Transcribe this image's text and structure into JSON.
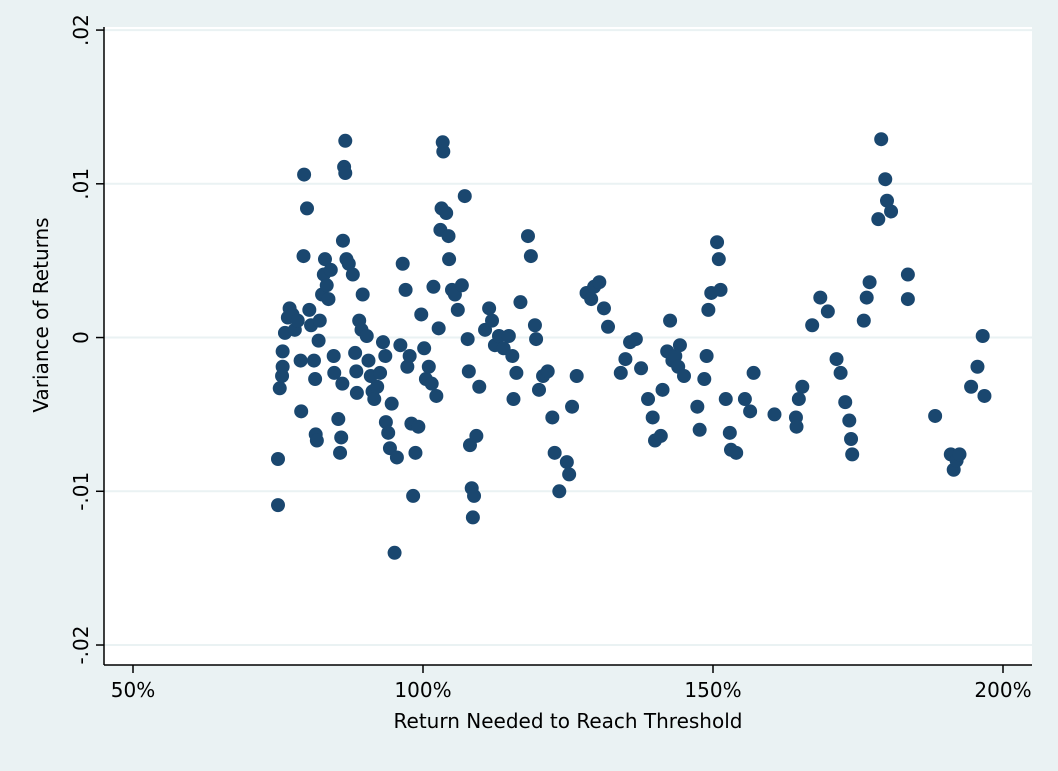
{
  "chart_data": {
    "type": "scatter",
    "x_label": "Return Needed to Reach Threshold",
    "y_label": "Variance of Returns",
    "color": "#1a476f",
    "grid": true,
    "xlim": [
      45,
      205
    ],
    "ylim": [
      -0.0213,
      0.0202
    ],
    "xticks": [
      {
        "value": 50,
        "label": "50%"
      },
      {
        "value": 100,
        "label": "100%"
      },
      {
        "value": 150,
        "label": "150%"
      },
      {
        "value": 200,
        "label": "200%"
      }
    ],
    "yticks": [
      {
        "value": -0.02,
        "label": "-.02"
      },
      {
        "value": -0.01,
        "label": "-.01"
      },
      0,
      {
        "value": 0.01,
        "label": ".01"
      },
      {
        "value": 0.02,
        "label": ".02"
      }
    ],
    "x": [
      75.0,
      75.0,
      75.3,
      75.7,
      75.8,
      75.8,
      76.2,
      76.7,
      77.0,
      77.5,
      77.9,
      78.4,
      78.9,
      79.0,
      79.4,
      79.5,
      80.0,
      80.4,
      80.7,
      81.2,
      81.4,
      81.5,
      81.7,
      82.0,
      82.2,
      82.6,
      82.9,
      83.1,
      83.4,
      83.7,
      84.1,
      84.6,
      84.7,
      85.4,
      85.7,
      85.9,
      86.1,
      86.2,
      86.4,
      86.6,
      86.6,
      86.8,
      87.2,
      87.9,
      88.3,
      88.5,
      88.6,
      89.0,
      89.4,
      89.6,
      90.3,
      90.6,
      91.0,
      91.3,
      91.6,
      92.1,
      92.6,
      93.1,
      93.5,
      93.6,
      94.0,
      94.3,
      94.6,
      95.1,
      95.5,
      96.1,
      96.5,
      97.0,
      97.3,
      97.7,
      98.0,
      98.3,
      98.7,
      99.2,
      99.7,
      100.2,
      100.5,
      101.0,
      101.5,
      101.8,
      102.3,
      102.7,
      103.0,
      103.2,
      103.4,
      103.5,
      104.0,
      104.4,
      104.5,
      105.0,
      105.5,
      106.0,
      106.7,
      107.2,
      107.7,
      107.9,
      108.1,
      108.4,
      108.6,
      108.8,
      109.2,
      109.7,
      110.7,
      111.4,
      111.9,
      112.4,
      113.1,
      113.9,
      114.8,
      115.4,
      115.6,
      116.1,
      116.8,
      118.1,
      118.6,
      119.3,
      119.5,
      120.0,
      120.7,
      121.5,
      122.3,
      122.7,
      123.5,
      124.8,
      125.2,
      125.7,
      126.5,
      128.2,
      129.0,
      129.5,
      130.4,
      131.2,
      131.9,
      134.1,
      134.9,
      135.7,
      136.7,
      137.6,
      138.8,
      139.6,
      140.0,
      141.0,
      141.3,
      142.1,
      142.6,
      143.0,
      143.5,
      144.0,
      144.3,
      145.0,
      147.3,
      147.7,
      148.5,
      148.9,
      149.2,
      149.7,
      150.7,
      151.0,
      151.3,
      152.2,
      152.9,
      153.1,
      154.0,
      155.5,
      156.4,
      157.0,
      160.6,
      164.3,
      164.4,
      164.8,
      165.4,
      167.1,
      168.5,
      169.8,
      171.3,
      172.0,
      172.8,
      173.5,
      173.8,
      174.0,
      176.0,
      176.5,
      177.0,
      178.5,
      179.0,
      179.7,
      180.0,
      180.7,
      183.6,
      183.6,
      188.3,
      191.0,
      191.5,
      192.0,
      192.5,
      194.5,
      195.6,
      196.5,
      196.8
    ],
    "values": [
      -0.0109,
      -0.0079,
      -0.0033,
      -0.0025,
      -0.0019,
      -0.0009,
      0.0003,
      0.0013,
      0.0019,
      0.0015,
      0.0005,
      0.0011,
      -0.0015,
      -0.0048,
      0.0053,
      0.0106,
      0.0084,
      0.0018,
      0.0008,
      -0.0015,
      -0.0027,
      -0.0063,
      -0.0067,
      -0.0002,
      0.0011,
      0.0028,
      0.0041,
      0.0051,
      0.0034,
      0.0025,
      0.0044,
      -0.0012,
      -0.0023,
      -0.0053,
      -0.0075,
      -0.0065,
      -0.003,
      0.0063,
      0.0111,
      0.0128,
      0.0107,
      0.0051,
      0.0048,
      0.0041,
      -0.001,
      -0.0022,
      -0.0036,
      0.0011,
      0.0005,
      0.0028,
      0.0001,
      -0.0015,
      -0.0025,
      -0.0035,
      -0.004,
      -0.0032,
      -0.0023,
      -0.0003,
      -0.0012,
      -0.0055,
      -0.0062,
      -0.0072,
      -0.0043,
      -0.014,
      -0.0078,
      -0.0005,
      0.0048,
      0.0031,
      -0.0019,
      -0.0012,
      -0.0056,
      -0.0103,
      -0.0075,
      -0.0058,
      0.0015,
      -0.0007,
      -0.0027,
      -0.0019,
      -0.003,
      0.0033,
      -0.0038,
      0.0006,
      0.007,
      0.0084,
      0.0127,
      0.0121,
      0.0081,
      0.0066,
      0.0051,
      0.0031,
      0.0028,
      0.0018,
      0.0034,
      0.0092,
      -0.0001,
      -0.0022,
      -0.007,
      -0.0098,
      -0.0117,
      -0.0103,
      -0.0064,
      -0.0032,
      0.0005,
      0.0019,
      0.0011,
      -0.0005,
      0.0001,
      -0.0007,
      0.0001,
      -0.0012,
      -0.004,
      -0.0023,
      0.0023,
      0.0066,
      0.0053,
      0.0008,
      -0.0001,
      -0.0034,
      -0.0025,
      -0.0022,
      -0.0052,
      -0.0075,
      -0.01,
      -0.0081,
      -0.0089,
      -0.0045,
      -0.0025,
      0.0029,
      0.0025,
      0.0033,
      0.0036,
      0.0019,
      0.0007,
      -0.0023,
      -0.0014,
      -0.0003,
      -0.0001,
      -0.002,
      -0.004,
      -0.0052,
      -0.0067,
      -0.0064,
      -0.0034,
      -0.0009,
      0.0011,
      -0.0015,
      -0.0012,
      -0.0019,
      -0.0005,
      -0.0025,
      -0.0045,
      -0.006,
      -0.0027,
      -0.0012,
      0.0018,
      0.0029,
      0.0062,
      0.0051,
      0.0031,
      -0.004,
      -0.0062,
      -0.0073,
      -0.0075,
      -0.004,
      -0.0048,
      -0.0023,
      -0.005,
      -0.0052,
      -0.0058,
      -0.004,
      -0.0032,
      0.0008,
      0.0026,
      0.0017,
      -0.0014,
      -0.0023,
      -0.0042,
      -0.0054,
      -0.0066,
      -0.0076,
      0.0011,
      0.0026,
      0.0036,
      0.0077,
      0.0129,
      0.0103,
      0.0089,
      0.0082,
      0.0041,
      0.0025,
      -0.0051,
      -0.0076,
      -0.0086,
      -0.008,
      -0.0076,
      -0.0032,
      -0.0019,
      0.0001,
      -0.0038
    ]
  }
}
